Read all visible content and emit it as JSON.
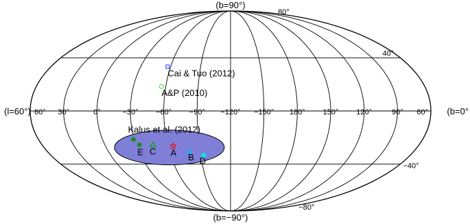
{
  "chart_data": {
    "type": "scatter",
    "projection": "mollweide",
    "coordinate_system": "galactic",
    "title": "",
    "edge_labels": {
      "top": "(b=90°)",
      "bottom": "(b=−90°)",
      "left": "(l=60°)",
      "right": "(b=0°"
    },
    "longitude_ticks": [
      {
        "label": "60°",
        "l": 60
      },
      {
        "label": "90°",
        "l": 90
      },
      {
        "label": "120°",
        "l": 120
      },
      {
        "label": "150°",
        "l": 150
      },
      {
        "label": "180°",
        "l": 180
      },
      {
        "label": "−150°",
        "l": -150
      },
      {
        "label": "−120°",
        "l": -120
      },
      {
        "label": "−90°",
        "l": -90
      },
      {
        "label": "−60°",
        "l": -60
      },
      {
        "label": "−30°",
        "l": -30
      },
      {
        "label": "0°",
        "l": 0
      },
      {
        "label": "30°",
        "l": 30
      },
      {
        "label": "60°",
        "l": 60
      }
    ],
    "latitude_ticks": [
      {
        "label": "80°",
        "b": 80
      },
      {
        "label": "40°",
        "b": 40
      },
      {
        "label": "−40°",
        "b": -40
      },
      {
        "label": "−80°",
        "b": -80
      }
    ],
    "meridians_l": [
      90,
      120,
      150,
      180,
      -150,
      -120,
      -90,
      -60,
      -30,
      0,
      30
    ],
    "parallels_b": [
      -40,
      0,
      40
    ],
    "grid": true,
    "region": {
      "shape": "ellipse",
      "center": {
        "l": -61,
        "b": -27
      },
      "semi_axes_deg": {
        "dl": 53,
        "db": 13
      },
      "color": "#7f7fd8"
    },
    "points": [
      {
        "label": "Cai & Tuo (2012)",
        "l": -57,
        "b": 33,
        "marker": "square",
        "color": "#2a2aff"
      },
      {
        "label": "A&P (2010)",
        "l": -56,
        "b": 18,
        "marker": "circle",
        "color": "#33dd33"
      },
      {
        "label": "Kalus et al. (2012)",
        "l": -29,
        "b": -21,
        "marker": "circle",
        "color": "#228b22"
      },
      {
        "label": "A",
        "l": -65,
        "b": -26,
        "marker": "star",
        "color": "#ff0000"
      },
      {
        "label": "B",
        "l": -79,
        "b": -30,
        "marker": "triangle",
        "color": "#00bfff"
      },
      {
        "label": "C",
        "l": -46,
        "b": -25,
        "marker": "triangle",
        "color": "#00aa00"
      },
      {
        "label": "D",
        "l": -93,
        "b": -33,
        "marker": "circle",
        "color": "#00e5ee"
      },
      {
        "label": "E",
        "l": -33,
        "b": -25,
        "marker": "circle",
        "color": "#228b22"
      }
    ]
  }
}
